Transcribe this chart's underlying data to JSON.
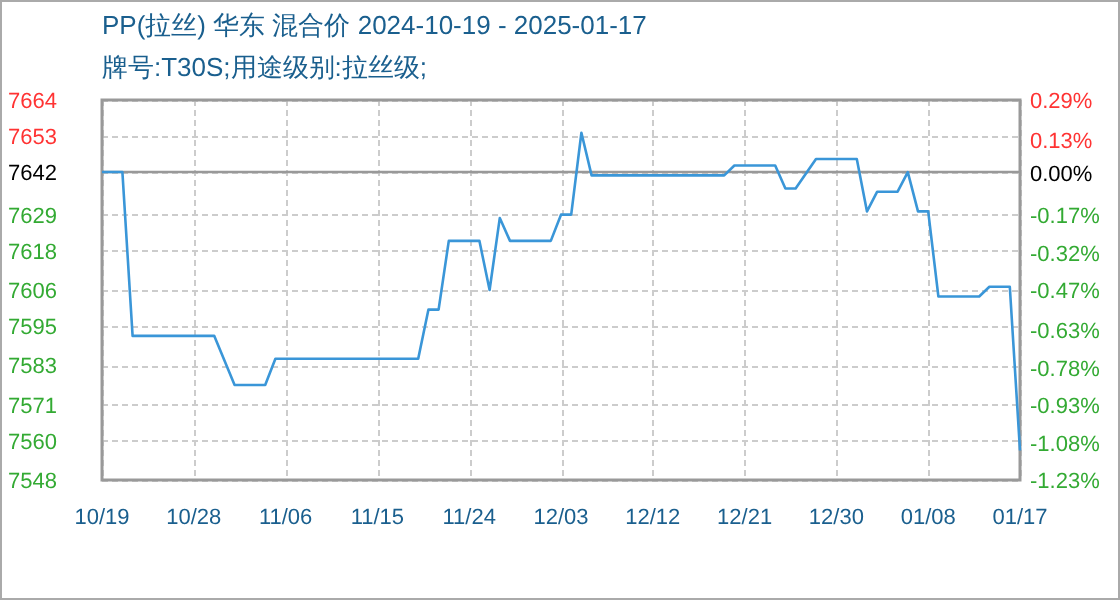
{
  "chart_data": {
    "type": "line",
    "title": "PP(拉丝) 华东 混合价 2024-10-19 - 2025-01-17",
    "subtitle": "牌号:T30S;用途级别:拉丝级;",
    "series": [
      {
        "color": "#3a96d8",
        "x": [
          "2024-10-19",
          "2024-10-21",
          "2024-10-22",
          "2024-10-30",
          "2024-11-01",
          "2024-11-04",
          "2024-11-05",
          "2024-11-19",
          "2024-11-20",
          "2024-11-21",
          "2024-11-22",
          "2024-11-25",
          "2024-11-26",
          "2024-11-27",
          "2024-11-28",
          "2024-12-02",
          "2024-12-03",
          "2024-12-04",
          "2024-12-05",
          "2024-12-06",
          "2024-12-19",
          "2024-12-20",
          "2024-12-24",
          "2024-12-25",
          "2024-12-26",
          "2024-12-28",
          "2025-01-01",
          "2025-01-02",
          "2025-01-03",
          "2025-01-05",
          "2025-01-06",
          "2025-01-07",
          "2025-01-08",
          "2025-01-09",
          "2025-01-13",
          "2025-01-14",
          "2025-01-16",
          "2025-01-17"
        ],
        "values": [
          7642,
          7642,
          7592,
          7592,
          7577,
          7577,
          7585,
          7585,
          7600,
          7600,
          7621,
          7621,
          7606,
          7628,
          7621,
          7621,
          7629,
          7629,
          7654,
          7641,
          7641,
          7644,
          7644,
          7637,
          7637,
          7646,
          7646,
          7630,
          7636,
          7636,
          7642,
          7630,
          7630,
          7604,
          7604,
          7607,
          7607,
          7557
        ]
      }
    ],
    "xlim": [
      "2024-10-19",
      "2025-01-17"
    ],
    "xticks": [
      {
        "value": "2024-10-19",
        "label": "10/19"
      },
      {
        "value": "2024-10-28",
        "label": "10/28"
      },
      {
        "value": "2024-11-06",
        "label": "11/06"
      },
      {
        "value": "2024-11-15",
        "label": "11/15"
      },
      {
        "value": "2024-11-24",
        "label": "11/24"
      },
      {
        "value": "2024-12-03",
        "label": "12/03"
      },
      {
        "value": "2024-12-12",
        "label": "12/12"
      },
      {
        "value": "2024-12-21",
        "label": "12/21"
      },
      {
        "value": "2024-12-30",
        "label": "12/30"
      },
      {
        "value": "2025-01-08",
        "label": "01/08"
      },
      {
        "value": "2025-01-17",
        "label": "01/17"
      }
    ],
    "ylim": [
      7548,
      7664
    ],
    "yticks": [
      7548,
      7560,
      7571,
      7583,
      7595,
      7606,
      7618,
      7629,
      7642,
      7653,
      7664
    ],
    "y2lim": [
      -1.23,
      0.29
    ],
    "y2ticks": [
      {
        "value": -1.23,
        "label": "-1.23%"
      },
      {
        "value": -1.08,
        "label": "-1.08%"
      },
      {
        "value": -0.93,
        "label": "-0.93%"
      },
      {
        "value": -0.78,
        "label": "-0.78%"
      },
      {
        "value": -0.63,
        "label": "-0.63%"
      },
      {
        "value": -0.47,
        "label": "-0.47%"
      },
      {
        "value": -0.32,
        "label": "-0.32%"
      },
      {
        "value": -0.17,
        "label": "-0.17%"
      },
      {
        "value": 0,
        "label": "0.00%"
      },
      {
        "value": 0.13,
        "label": "0.13%"
      },
      {
        "value": 0.29,
        "label": "0.29%"
      }
    ],
    "ref_lines": [
      {
        "axis": "y",
        "value": 7642,
        "color": "#999999",
        "line_style": "solid"
      }
    ],
    "grid": true,
    "marker": "none",
    "line_style": "solid"
  }
}
